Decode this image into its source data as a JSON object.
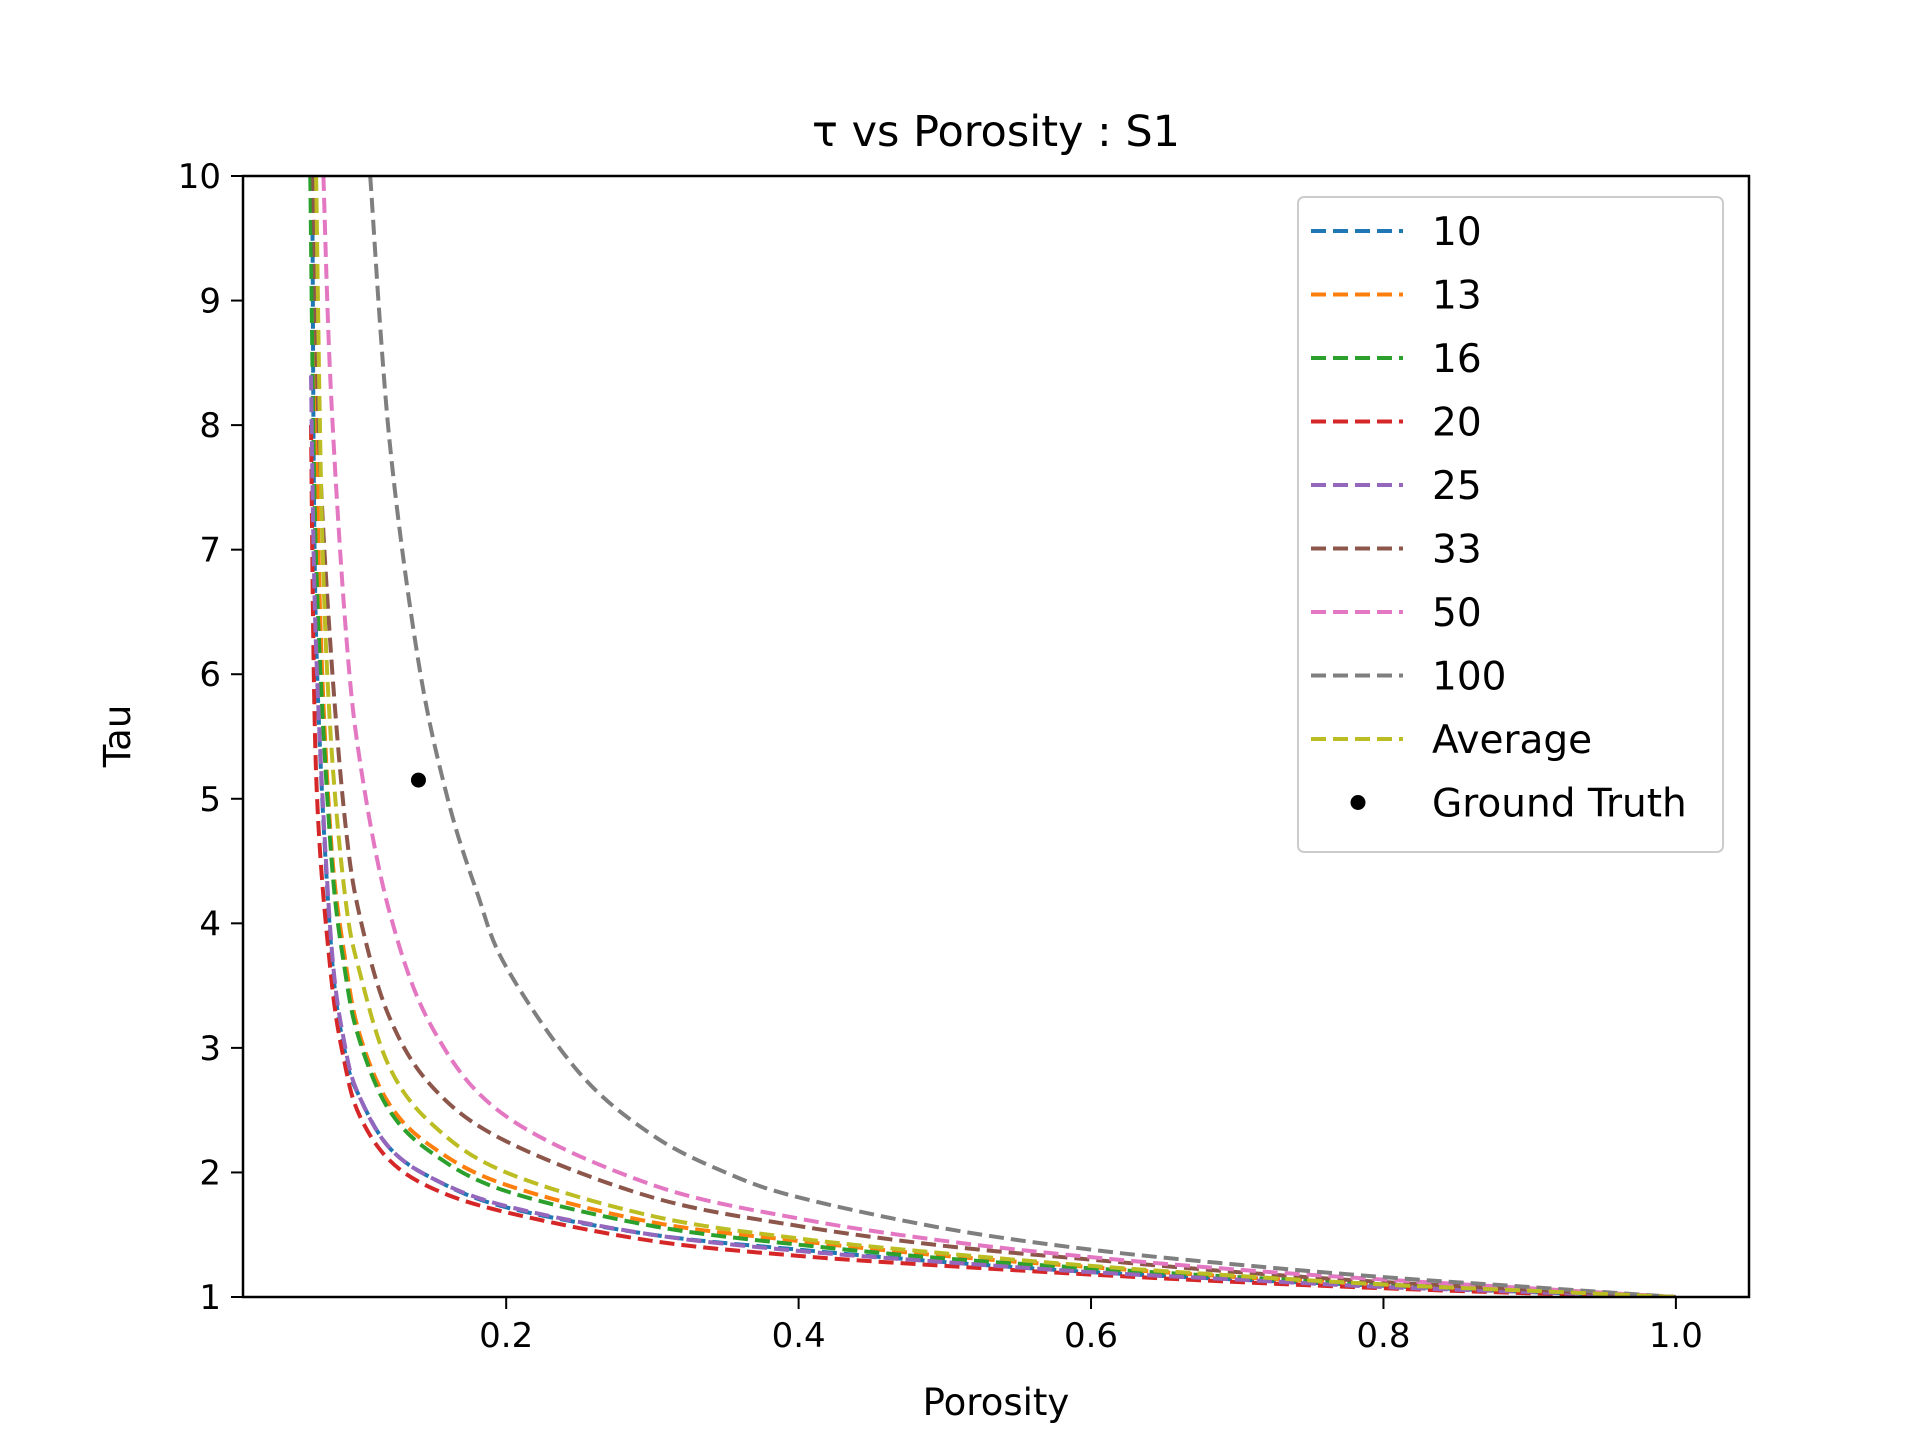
{
  "chart_data": {
    "type": "line",
    "title": "τ vs Porosity : S1",
    "xlabel": "Porosity",
    "ylabel": "Tau",
    "xlim": [
      0.02,
      1.05
    ],
    "ylim": [
      1,
      10
    ],
    "xticks": [
      0.2,
      0.4,
      0.6,
      0.8,
      1.0
    ],
    "xtick_labels": [
      "0.2",
      "0.4",
      "0.6",
      "0.8",
      "1.0"
    ],
    "yticks": [
      1,
      2,
      3,
      4,
      5,
      6,
      7,
      8,
      9,
      10
    ],
    "ytick_labels": [
      "1",
      "2",
      "3",
      "4",
      "5",
      "6",
      "7",
      "8",
      "9",
      "10"
    ],
    "legend_position": "upper right",
    "series": [
      {
        "name": "10",
        "color": "#1f77b4",
        "style": "dashed",
        "x": [
          0.0675,
          0.07,
          0.08,
          0.09,
          0.1,
          0.12,
          0.15,
          0.2,
          0.3,
          0.4,
          0.5,
          0.6,
          0.7,
          0.8,
          0.9,
          1.0
        ],
        "y": [
          9.6,
          6.3,
          3.85,
          2.95,
          2.6,
          2.2,
          1.95,
          1.72,
          1.5,
          1.38,
          1.28,
          1.2,
          1.14,
          1.09,
          1.04,
          1.0
        ]
      },
      {
        "name": "13",
        "color": "#ff7f0e",
        "style": "dashed",
        "x": [
          0.0685,
          0.072,
          0.08,
          0.09,
          0.1,
          0.12,
          0.15,
          0.2,
          0.3,
          0.4,
          0.5,
          0.6,
          0.7,
          0.8,
          0.9,
          1.0
        ],
        "y": [
          10.0,
          6.8,
          4.7,
          3.7,
          3.1,
          2.55,
          2.2,
          1.9,
          1.6,
          1.45,
          1.33,
          1.24,
          1.16,
          1.1,
          1.05,
          1.0
        ]
      },
      {
        "name": "16",
        "color": "#2ca02c",
        "style": "dashed",
        "x": [
          0.066,
          0.07,
          0.08,
          0.09,
          0.1,
          0.12,
          0.15,
          0.2,
          0.3,
          0.4,
          0.5,
          0.6,
          0.7,
          0.8,
          0.9,
          1.0
        ],
        "y": [
          10.0,
          6.9,
          4.6,
          3.6,
          3.05,
          2.5,
          2.15,
          1.85,
          1.57,
          1.42,
          1.31,
          1.23,
          1.16,
          1.1,
          1.05,
          1.0
        ]
      },
      {
        "name": "20",
        "color": "#d62728",
        "style": "dashed",
        "x": [
          0.0665,
          0.07,
          0.08,
          0.09,
          0.1,
          0.12,
          0.15,
          0.2,
          0.3,
          0.4,
          0.5,
          0.6,
          0.7,
          0.8,
          0.9,
          1.0
        ],
        "y": [
          8.0,
          5.2,
          3.6,
          2.85,
          2.45,
          2.1,
          1.87,
          1.68,
          1.45,
          1.33,
          1.25,
          1.18,
          1.12,
          1.07,
          1.03,
          1.0
        ]
      },
      {
        "name": "25",
        "color": "#9467bd",
        "style": "dashed",
        "x": [
          0.0665,
          0.07,
          0.08,
          0.09,
          0.1,
          0.12,
          0.15,
          0.2,
          0.3,
          0.4,
          0.5,
          0.6,
          0.7,
          0.8,
          0.9,
          1.0
        ],
        "y": [
          8.4,
          6.2,
          3.9,
          3.0,
          2.6,
          2.2,
          1.95,
          1.73,
          1.5,
          1.37,
          1.28,
          1.2,
          1.14,
          1.08,
          1.04,
          1.0
        ]
      },
      {
        "name": "33",
        "color": "#8c564b",
        "style": "dashed",
        "x": [
          0.068,
          0.072,
          0.08,
          0.09,
          0.1,
          0.12,
          0.15,
          0.2,
          0.3,
          0.4,
          0.5,
          0.6,
          0.7,
          0.8,
          0.9,
          1.0
        ],
        "y": [
          10.0,
          7.9,
          6.2,
          4.8,
          4.05,
          3.25,
          2.68,
          2.25,
          1.8,
          1.57,
          1.41,
          1.3,
          1.2,
          1.12,
          1.06,
          1.0
        ]
      },
      {
        "name": "50",
        "color": "#e377c2",
        "style": "dashed",
        "x": [
          0.075,
          0.08,
          0.09,
          0.1,
          0.12,
          0.15,
          0.2,
          0.3,
          0.4,
          0.5,
          0.6,
          0.7,
          0.8,
          0.9,
          1.0
        ],
        "y": [
          10.0,
          8.3,
          6.4,
          5.3,
          4.1,
          3.15,
          2.45,
          1.9,
          1.63,
          1.45,
          1.32,
          1.22,
          1.14,
          1.07,
          1.0
        ]
      },
      {
        "name": "100",
        "color": "#7f7f7f",
        "style": "dashed",
        "x": [
          0.107,
          0.12,
          0.14,
          0.16,
          0.18,
          0.2,
          0.25,
          0.3,
          0.35,
          0.4,
          0.5,
          0.6,
          0.7,
          0.8,
          0.9,
          1.0
        ],
        "y": [
          10.0,
          7.9,
          6.1,
          5.0,
          4.25,
          3.65,
          2.8,
          2.3,
          2.0,
          1.8,
          1.55,
          1.38,
          1.26,
          1.16,
          1.08,
          1.0
        ]
      },
      {
        "name": "Average",
        "color": "#bcbd22",
        "style": "dashed",
        "x": [
          0.07,
          0.074,
          0.08,
          0.09,
          0.1,
          0.12,
          0.15,
          0.2,
          0.3,
          0.4,
          0.5,
          0.6,
          0.7,
          0.8,
          0.9,
          1.0
        ],
        "y": [
          10.0,
          7.2,
          5.5,
          4.2,
          3.6,
          2.85,
          2.38,
          2.0,
          1.65,
          1.47,
          1.35,
          1.25,
          1.17,
          1.1,
          1.05,
          1.0
        ]
      },
      {
        "name": "Ground Truth",
        "color": "#000000",
        "style": "marker",
        "x": [
          0.14
        ],
        "y": [
          5.15
        ]
      }
    ]
  }
}
